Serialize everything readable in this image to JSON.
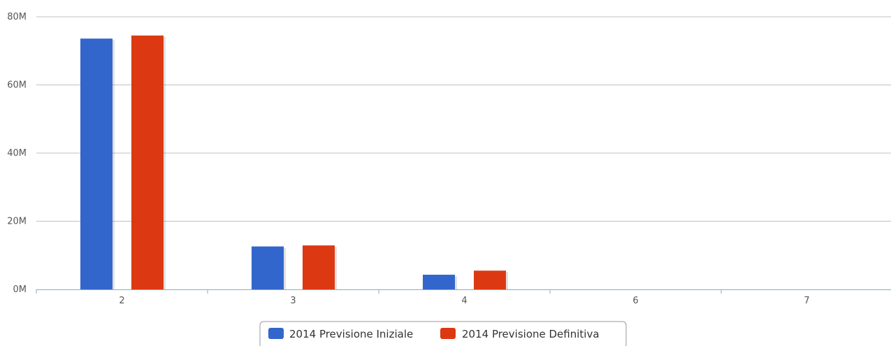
{
  "chart_data": {
    "type": "bar",
    "title": "",
    "xlabel": "",
    "ylabel": "",
    "categories": [
      "2",
      "3",
      "4",
      "6",
      "7"
    ],
    "series": [
      {
        "name": "2014 Previsione Iniziale",
        "color": "#3366cc",
        "values": [
          73.6,
          12.6,
          4.3,
          0,
          0
        ]
      },
      {
        "name": "2014 Previsione Definitiva",
        "color": "#dc3912",
        "values": [
          74.5,
          12.9,
          5.5,
          0,
          0
        ]
      }
    ],
    "y_ticks": [
      "0M",
      "20M",
      "40M",
      "60M",
      "80M"
    ],
    "y_tick_values": [
      0,
      20,
      40,
      60,
      80
    ],
    "ylim": [
      0,
      80
    ],
    "value_unit": "M",
    "grid": true,
    "legend_position": "bottom"
  }
}
